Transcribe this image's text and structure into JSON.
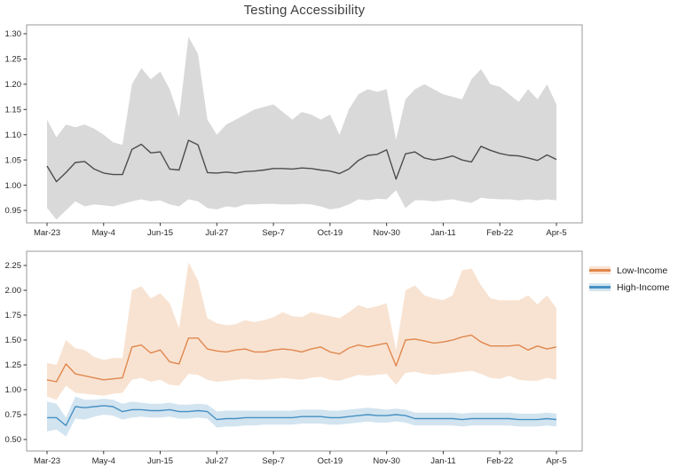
{
  "title": "Testing Accessibility",
  "colors": {
    "frame": "#9a9a9a",
    "tick_text": "#262626",
    "title_text": "#3f3f3f",
    "gray_line": "#4d4d4d",
    "gray_band": "#d9d9d9",
    "orange_line": "#e0874e",
    "orange_band": "#f8e3d2",
    "blue_line": "#4691c2",
    "blue_band": "#d2e4f0"
  },
  "legend": {
    "items": [
      {
        "label": "Low-Income",
        "line_color": "#e0874e",
        "band_color": "#f8e3d2"
      },
      {
        "label": "High-Income",
        "line_color": "#4691c2",
        "band_color": "#d2e4f0"
      }
    ]
  },
  "chart_data": [
    {
      "type": "line",
      "panel": "top",
      "title": "Testing Accessibility",
      "xlabel": "",
      "ylabel": "",
      "grid": false,
      "legend_position": "none",
      "x_tick_labels": [
        "Mar-23",
        "May-4",
        "Jun-15",
        "Jul-27",
        "Sep-7",
        "Oct-19",
        "Nov-30",
        "Jan-11",
        "Feb-22",
        "Apr-5"
      ],
      "tick_every": 6,
      "n_points": 55,
      "yticks": [
        "1.30",
        "1.25",
        "1.20",
        "1.15",
        "1.10",
        "1.05",
        "1.00",
        "0.95"
      ],
      "ylim": [
        0.925,
        1.318
      ],
      "series": [
        {
          "id": "overall",
          "line_color": "#4d4d4d",
          "band_color": "#d9d9d9",
          "values": [
            1.038,
            1.007,
            1.025,
            1.045,
            1.047,
            1.032,
            1.024,
            1.021,
            1.021,
            1.071,
            1.081,
            1.064,
            1.066,
            1.032,
            1.03,
            1.089,
            1.08,
            1.025,
            1.024,
            1.026,
            1.024,
            1.027,
            1.028,
            1.03,
            1.033,
            1.033,
            1.032,
            1.034,
            1.033,
            1.03,
            1.028,
            1.023,
            1.032,
            1.049,
            1.059,
            1.061,
            1.07,
            1.012,
            1.062,
            1.066,
            1.054,
            1.05,
            1.053,
            1.058,
            1.05,
            1.046,
            1.077,
            1.069,
            1.063,
            1.059,
            1.058,
            1.054,
            1.049,
            1.06,
            1.051
          ],
          "band_upper": [
            1.13,
            1.095,
            1.12,
            1.115,
            1.12,
            1.112,
            1.1,
            1.085,
            1.08,
            1.2,
            1.232,
            1.21,
            1.225,
            1.19,
            1.135,
            1.294,
            1.26,
            1.13,
            1.1,
            1.12,
            1.13,
            1.14,
            1.15,
            1.155,
            1.16,
            1.145,
            1.13,
            1.145,
            1.14,
            1.13,
            1.14,
            1.1,
            1.15,
            1.18,
            1.19,
            1.185,
            1.19,
            1.09,
            1.17,
            1.19,
            1.2,
            1.19,
            1.18,
            1.175,
            1.17,
            1.21,
            1.23,
            1.2,
            1.195,
            1.18,
            1.165,
            1.19,
            1.17,
            1.2,
            1.16
          ],
          "band_lower": [
            0.955,
            0.932,
            0.95,
            0.968,
            0.958,
            0.962,
            0.96,
            0.958,
            0.963,
            0.968,
            0.972,
            0.968,
            0.97,
            0.962,
            0.958,
            0.972,
            0.968,
            0.955,
            0.952,
            0.958,
            0.956,
            0.962,
            0.962,
            0.963,
            0.963,
            0.962,
            0.962,
            0.963,
            0.962,
            0.958,
            0.952,
            0.955,
            0.962,
            0.972,
            0.97,
            0.973,
            0.972,
            0.99,
            0.955,
            0.97,
            0.97,
            0.968,
            0.97,
            0.972,
            0.968,
            0.965,
            0.975,
            0.973,
            0.972,
            0.972,
            0.97,
            0.972,
            0.97,
            0.972,
            0.97
          ]
        }
      ]
    },
    {
      "type": "line",
      "panel": "bottom",
      "title": "",
      "xlabel": "",
      "ylabel": "",
      "grid": false,
      "legend_position": "outside-right",
      "x_tick_labels": [
        "Mar-23",
        "May-4",
        "Jun-15",
        "Jul-27",
        "Sep-7",
        "Oct-19",
        "Nov-30",
        "Jan-11",
        "Feb-22",
        "Apr-5"
      ],
      "tick_every": 6,
      "n_points": 55,
      "yticks": [
        "2.25",
        "2.00",
        "1.75",
        "1.50",
        "1.25",
        "1.00",
        "0.75",
        "0.50"
      ],
      "ylim": [
        0.38,
        2.39
      ],
      "series": [
        {
          "id": "low-income",
          "name": "Low-Income",
          "line_color": "#e0874e",
          "band_color": "#f8e3d2",
          "values": [
            1.1,
            1.08,
            1.26,
            1.16,
            1.14,
            1.12,
            1.1,
            1.11,
            1.12,
            1.43,
            1.45,
            1.37,
            1.4,
            1.28,
            1.26,
            1.52,
            1.52,
            1.41,
            1.39,
            1.38,
            1.4,
            1.41,
            1.38,
            1.38,
            1.4,
            1.41,
            1.4,
            1.38,
            1.41,
            1.43,
            1.38,
            1.36,
            1.42,
            1.45,
            1.43,
            1.45,
            1.47,
            1.24,
            1.5,
            1.51,
            1.49,
            1.47,
            1.48,
            1.5,
            1.53,
            1.55,
            1.48,
            1.44,
            1.44,
            1.44,
            1.45,
            1.4,
            1.44,
            1.41,
            1.43
          ],
          "band_upper": [
            1.27,
            1.25,
            1.5,
            1.42,
            1.4,
            1.33,
            1.3,
            1.32,
            1.32,
            2.0,
            2.04,
            1.92,
            1.97,
            1.87,
            1.62,
            2.28,
            2.1,
            1.72,
            1.67,
            1.65,
            1.66,
            1.7,
            1.68,
            1.7,
            1.73,
            1.78,
            1.74,
            1.73,
            1.78,
            1.76,
            1.74,
            1.72,
            1.78,
            1.85,
            1.82,
            1.84,
            1.87,
            1.4,
            2.0,
            2.05,
            1.95,
            1.92,
            1.9,
            1.95,
            2.2,
            2.22,
            2.05,
            1.92,
            1.9,
            1.9,
            1.9,
            1.95,
            1.86,
            1.95,
            1.82
          ],
          "band_lower": [
            0.93,
            0.9,
            1.04,
            0.97,
            0.96,
            0.95,
            0.94,
            0.96,
            0.97,
            1.1,
            1.12,
            1.08,
            1.1,
            1.05,
            1.04,
            1.16,
            1.15,
            1.1,
            1.08,
            1.09,
            1.1,
            1.11,
            1.1,
            1.1,
            1.11,
            1.12,
            1.11,
            1.1,
            1.12,
            1.13,
            1.1,
            1.09,
            1.12,
            1.15,
            1.14,
            1.15,
            1.16,
            1.05,
            1.17,
            1.18,
            1.16,
            1.15,
            1.16,
            1.17,
            1.18,
            1.19,
            1.16,
            1.12,
            1.11,
            1.14,
            1.1,
            1.09,
            1.09,
            1.12,
            1.1
          ]
        },
        {
          "id": "high-income",
          "name": "High-Income",
          "line_color": "#4691c2",
          "band_color": "#d2e4f0",
          "values": [
            0.72,
            0.72,
            0.64,
            0.83,
            0.82,
            0.83,
            0.84,
            0.83,
            0.78,
            0.8,
            0.8,
            0.79,
            0.79,
            0.8,
            0.78,
            0.78,
            0.79,
            0.78,
            0.7,
            0.71,
            0.71,
            0.72,
            0.72,
            0.72,
            0.72,
            0.72,
            0.72,
            0.73,
            0.73,
            0.73,
            0.72,
            0.72,
            0.73,
            0.74,
            0.75,
            0.74,
            0.74,
            0.75,
            0.74,
            0.71,
            0.71,
            0.71,
            0.71,
            0.71,
            0.7,
            0.71,
            0.71,
            0.71,
            0.71,
            0.71,
            0.7,
            0.7,
            0.7,
            0.71,
            0.7
          ],
          "band_upper": [
            0.88,
            0.86,
            0.72,
            0.93,
            0.9,
            0.9,
            0.91,
            0.9,
            0.86,
            0.88,
            0.87,
            0.86,
            0.86,
            0.87,
            0.85,
            0.85,
            0.86,
            0.85,
            0.78,
            0.79,
            0.79,
            0.79,
            0.79,
            0.79,
            0.79,
            0.79,
            0.79,
            0.8,
            0.8,
            0.8,
            0.79,
            0.79,
            0.8,
            0.81,
            0.82,
            0.81,
            0.8,
            0.81,
            0.8,
            0.77,
            0.77,
            0.77,
            0.77,
            0.77,
            0.76,
            0.77,
            0.77,
            0.77,
            0.77,
            0.77,
            0.76,
            0.76,
            0.76,
            0.77,
            0.76
          ],
          "band_lower": [
            0.58,
            0.6,
            0.53,
            0.71,
            0.7,
            0.73,
            0.75,
            0.74,
            0.7,
            0.72,
            0.73,
            0.72,
            0.72,
            0.73,
            0.71,
            0.71,
            0.72,
            0.71,
            0.62,
            0.63,
            0.63,
            0.64,
            0.64,
            0.65,
            0.65,
            0.65,
            0.65,
            0.66,
            0.66,
            0.66,
            0.65,
            0.65,
            0.66,
            0.67,
            0.68,
            0.67,
            0.67,
            0.68,
            0.67,
            0.64,
            0.64,
            0.64,
            0.64,
            0.64,
            0.63,
            0.64,
            0.64,
            0.64,
            0.64,
            0.64,
            0.63,
            0.63,
            0.63,
            0.64,
            0.63
          ]
        }
      ]
    }
  ]
}
